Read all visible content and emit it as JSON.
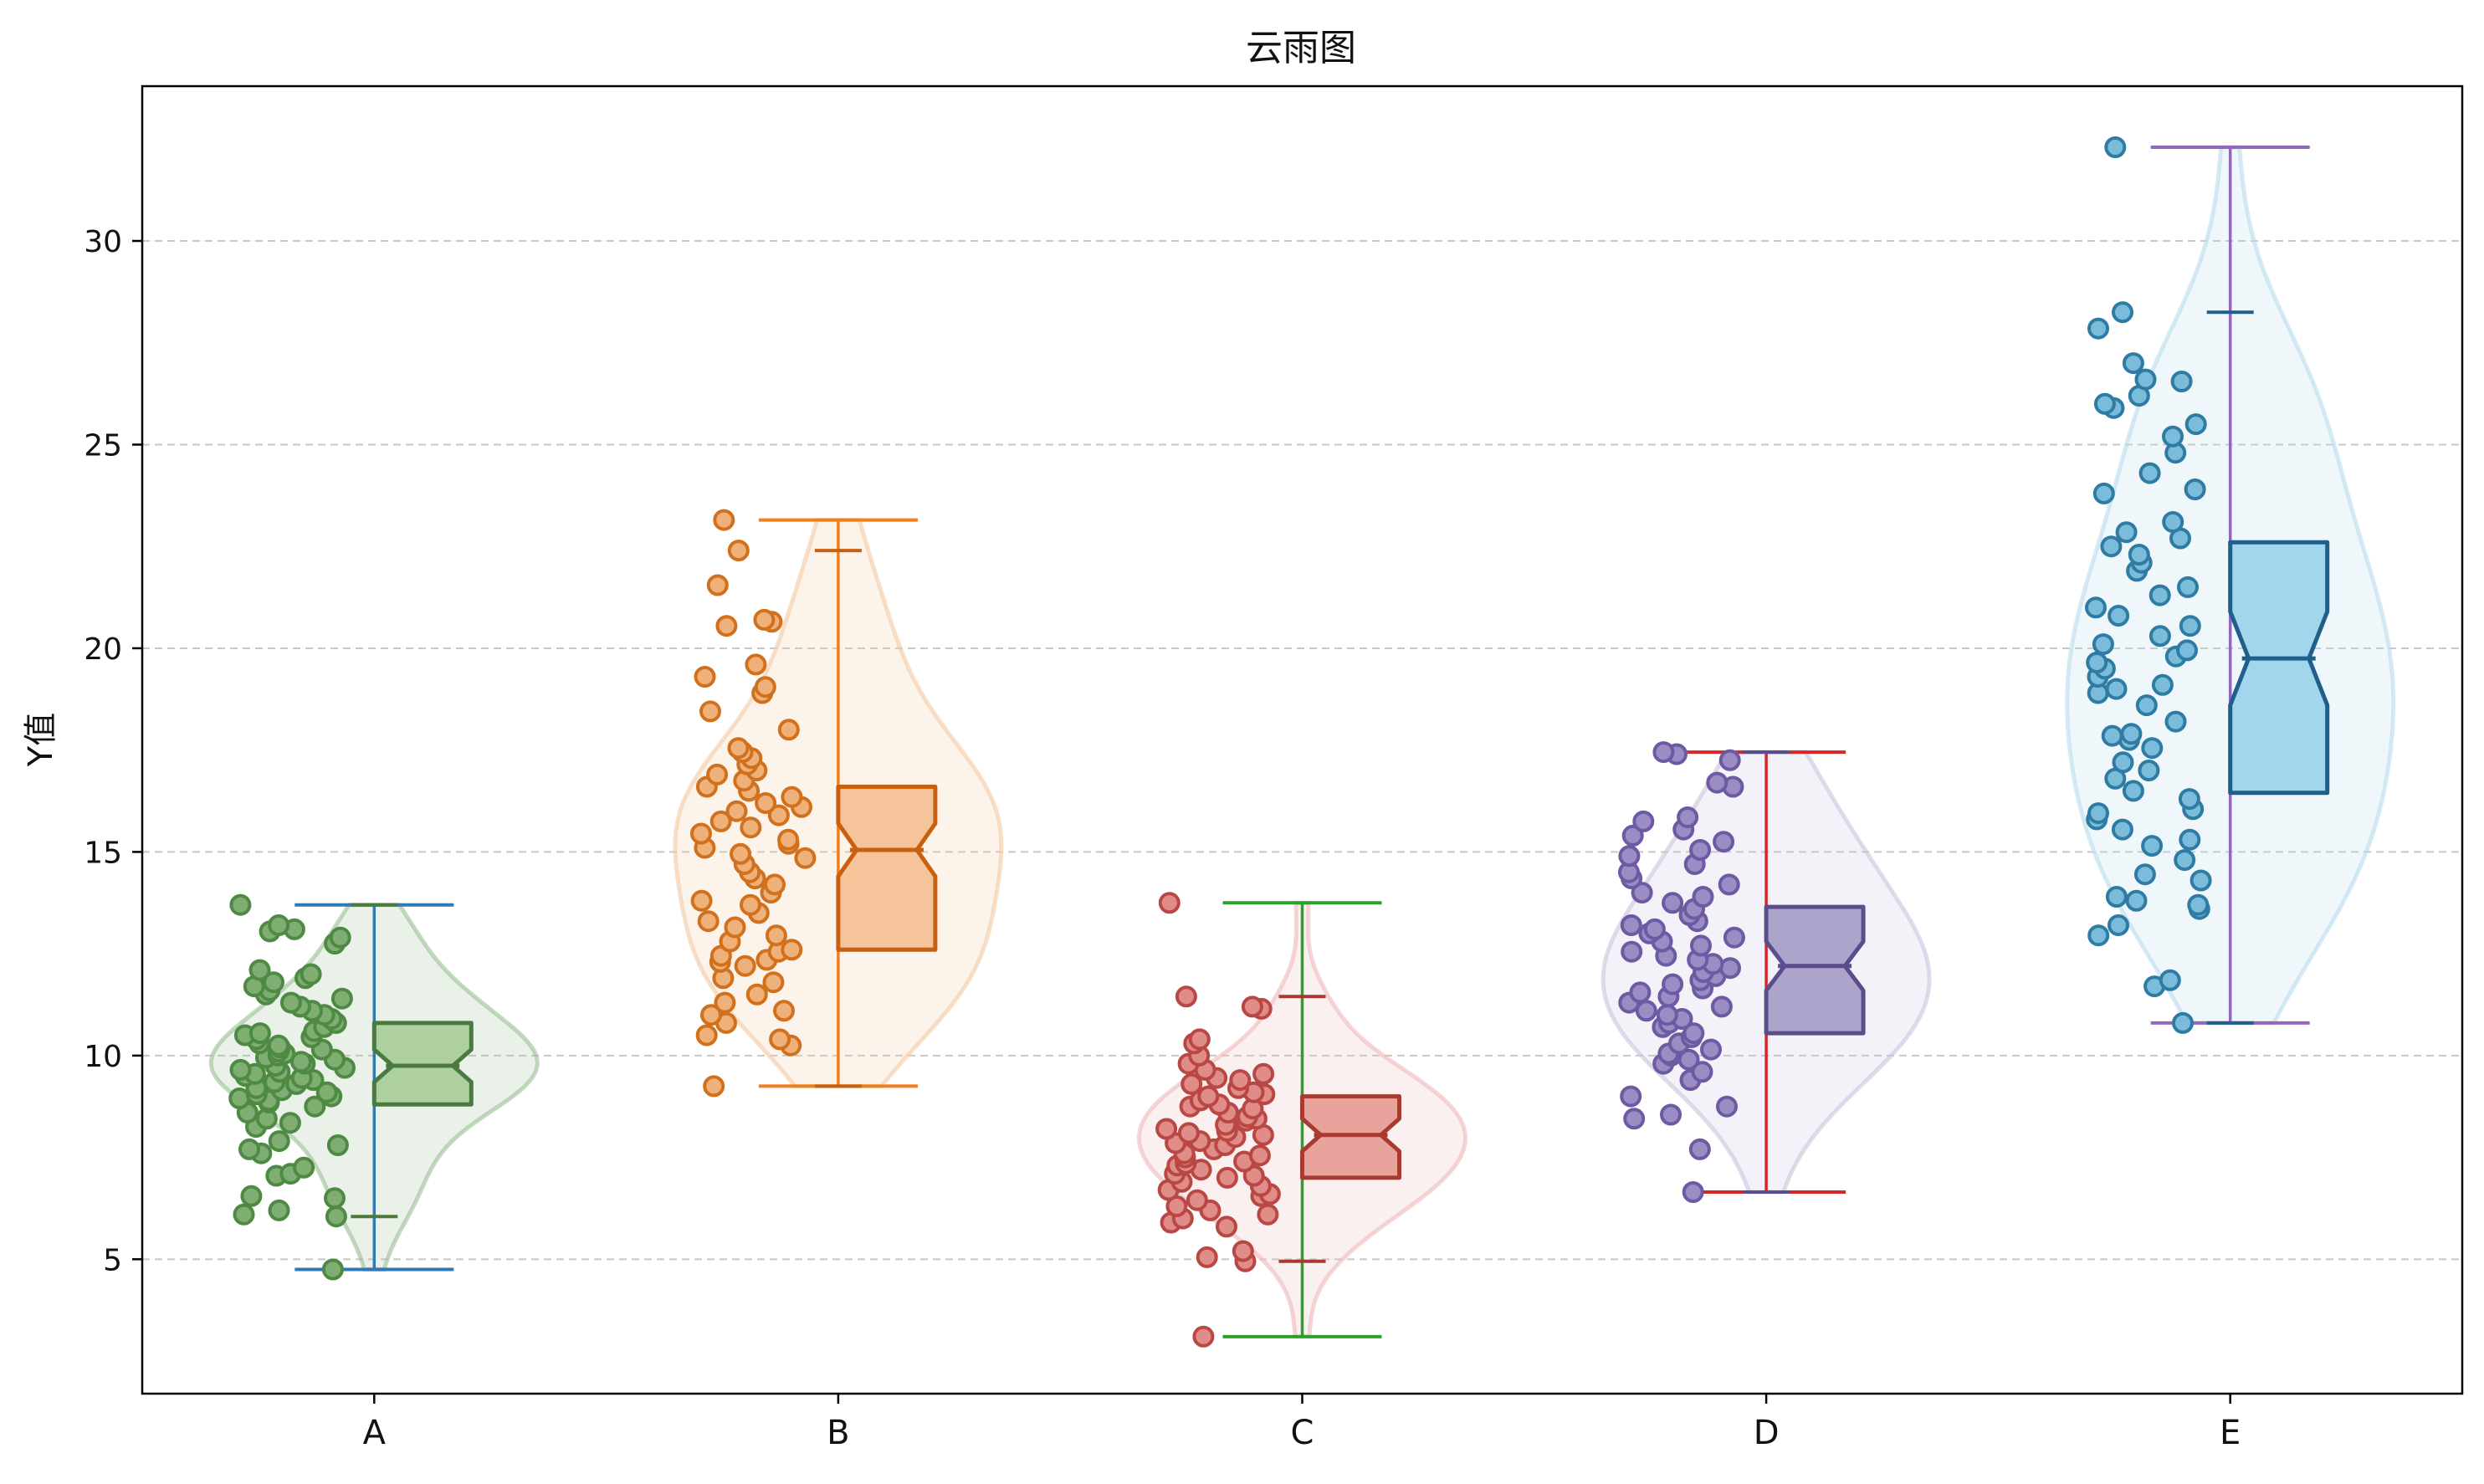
{
  "chart_data": {
    "type": "raincloud",
    "title": "云雨图",
    "xlabel": "",
    "ylabel": "Y值",
    "ylim": [
      1.7,
      33.8
    ],
    "yticks": [
      5,
      10,
      15,
      20,
      25,
      30
    ],
    "grid": {
      "y": true,
      "style": "dashed"
    },
    "categories": [
      "A",
      "B",
      "C",
      "D",
      "E"
    ],
    "series": [
      {
        "category": "A",
        "colors": {
          "violin": "#9bbf94",
          "box_fill": "#aed0a0",
          "box_edge": "#4a7a3e",
          "points": "#7fae73",
          "points_edge": "#4f8a44",
          "minmax_cap": "#2f79b5"
        },
        "min": 4.75,
        "max": 13.7,
        "whisker_low": 6.05,
        "whisker_high": 13.7,
        "q1": 8.8,
        "median": 9.75,
        "q3": 10.8,
        "notch_low": 9.35,
        "notch_high": 10.15,
        "points": [
          4.75,
          6.05,
          6.1,
          6.2,
          6.5,
          6.55,
          7.05,
          7.1,
          7.25,
          7.6,
          7.7,
          7.8,
          7.9,
          8.25,
          8.35,
          8.45,
          8.6,
          8.75,
          8.85,
          8.9,
          8.95,
          9.0,
          9.05,
          9.1,
          9.15,
          9.2,
          9.3,
          9.35,
          9.4,
          9.45,
          9.5,
          9.55,
          9.6,
          9.65,
          9.7,
          9.75,
          9.8,
          9.85,
          9.9,
          9.95,
          10.0,
          10.05,
          10.1,
          10.15,
          10.2,
          10.25,
          10.3,
          10.4,
          10.45,
          10.5,
          10.55,
          10.6,
          10.7,
          10.8,
          10.9,
          11.0,
          11.1,
          11.2,
          11.3,
          11.4,
          11.5,
          11.6,
          11.7,
          11.8,
          11.9,
          12.0,
          12.1,
          12.75,
          12.9,
          13.05,
          13.1,
          13.2,
          13.7
        ]
      },
      {
        "category": "B",
        "colors": {
          "violin": "#f3c9a4",
          "box_fill": "#f5c49b",
          "box_edge": "#c8600f",
          "points": "#efb17a",
          "points_edge": "#d2711d",
          "minmax_cap": "#f07f1b"
        },
        "min": 9.25,
        "max": 23.15,
        "whisker_low": 9.25,
        "whisker_high": 22.4,
        "q1": 12.6,
        "median": 15.05,
        "q3": 16.6,
        "notch_low": 14.4,
        "notch_high": 15.7,
        "points": [
          9.25,
          10.25,
          10.4,
          10.5,
          10.8,
          11.0,
          11.1,
          11.3,
          11.5,
          11.8,
          11.9,
          12.2,
          12.3,
          12.35,
          12.45,
          12.55,
          12.6,
          12.8,
          12.95,
          13.15,
          13.3,
          13.5,
          13.7,
          13.8,
          14.0,
          14.2,
          14.35,
          14.5,
          14.7,
          14.85,
          14.95,
          15.1,
          15.2,
          15.3,
          15.45,
          15.6,
          15.75,
          15.9,
          16.0,
          16.1,
          16.2,
          16.35,
          16.5,
          16.6,
          16.75,
          16.9,
          17.0,
          17.15,
          17.3,
          17.45,
          17.55,
          18.0,
          18.45,
          18.9,
          19.05,
          19.3,
          19.6,
          20.55,
          20.65,
          20.7,
          21.55,
          22.4,
          23.15
        ]
      },
      {
        "category": "C",
        "colors": {
          "violin": "#efb9b9",
          "box_fill": "#e9a39d",
          "box_edge": "#a83a30",
          "points": "#e08c88",
          "points_edge": "#b94844",
          "minmax_cap": "#2ca02c"
        },
        "min": 3.1,
        "max": 13.75,
        "whisker_low": 4.95,
        "whisker_high": 11.45,
        "q1": 7.0,
        "median": 8.05,
        "q3": 9.0,
        "notch_low": 7.65,
        "notch_high": 8.45,
        "points": [
          3.1,
          4.95,
          5.05,
          5.2,
          5.8,
          5.9,
          6.0,
          6.1,
          6.2,
          6.3,
          6.45,
          6.55,
          6.6,
          6.7,
          6.8,
          6.9,
          7.0,
          7.05,
          7.1,
          7.2,
          7.3,
          7.35,
          7.4,
          7.5,
          7.55,
          7.6,
          7.7,
          7.8,
          7.85,
          7.9,
          8.0,
          8.05,
          8.1,
          8.15,
          8.2,
          8.3,
          8.4,
          8.45,
          8.5,
          8.6,
          8.7,
          8.75,
          8.8,
          8.9,
          9.0,
          9.05,
          9.1,
          9.2,
          9.3,
          9.4,
          9.45,
          9.55,
          9.65,
          9.8,
          10.0,
          10.3,
          10.4,
          11.15,
          11.2,
          11.45,
          13.75
        ]
      },
      {
        "category": "D",
        "colors": {
          "violin": "#c9c4dd",
          "box_fill": "#ada4cc",
          "box_edge": "#5b4d8c",
          "points": "#9b8cc4",
          "points_edge": "#6c5aa3",
          "minmax_cap": "#d62728"
        },
        "min": 6.65,
        "max": 17.45,
        "whisker_low": 6.65,
        "whisker_high": 17.45,
        "q1": 10.55,
        "median": 12.2,
        "q3": 13.65,
        "notch_low": 11.6,
        "notch_high": 12.8,
        "points": [
          6.65,
          7.7,
          8.45,
          8.55,
          8.75,
          9.0,
          9.4,
          9.6,
          9.8,
          9.9,
          10.0,
          10.05,
          10.15,
          10.3,
          10.45,
          10.55,
          10.7,
          10.8,
          10.9,
          11.0,
          11.1,
          11.2,
          11.3,
          11.45,
          11.55,
          11.65,
          11.75,
          11.85,
          11.95,
          12.05,
          12.15,
          12.25,
          12.35,
          12.45,
          12.55,
          12.7,
          12.8,
          12.9,
          13.0,
          13.1,
          13.2,
          13.3,
          13.45,
          13.6,
          13.75,
          13.9,
          14.0,
          14.2,
          14.35,
          14.5,
          14.7,
          14.9,
          15.05,
          15.25,
          15.4,
          15.55,
          15.75,
          15.85,
          16.6,
          16.7,
          17.25,
          17.4,
          17.45
        ]
      },
      {
        "category": "E",
        "colors": {
          "violin": "#b9dcec",
          "box_fill": "#a2d6ec",
          "box_edge": "#1f5f8b",
          "points": "#7bbcdb",
          "points_edge": "#2e7ca3",
          "minmax_cap": "#9467bd"
        },
        "min": 10.8,
        "max": 32.3,
        "whisker_low": 10.8,
        "whisker_high": 28.25,
        "q1": 16.45,
        "median": 19.75,
        "q3": 22.6,
        "notch_low": 18.6,
        "notch_high": 20.9,
        "points": [
          10.8,
          11.7,
          11.85,
          12.95,
          13.2,
          13.6,
          13.7,
          13.8,
          13.9,
          14.3,
          14.45,
          14.8,
          15.15,
          15.3,
          15.55,
          15.8,
          15.95,
          16.05,
          16.3,
          16.5,
          16.8,
          17.0,
          17.2,
          17.55,
          17.75,
          17.85,
          17.9,
          18.2,
          18.6,
          18.9,
          19.0,
          19.1,
          19.3,
          19.5,
          19.65,
          19.8,
          19.95,
          20.1,
          20.3,
          20.55,
          20.8,
          21.0,
          21.3,
          21.5,
          21.9,
          22.1,
          22.3,
          22.5,
          22.7,
          22.85,
          23.1,
          23.8,
          23.9,
          24.3,
          24.8,
          25.2,
          25.5,
          25.9,
          26.0,
          26.2,
          26.55,
          26.6,
          27.0,
          27.85,
          28.25,
          32.3
        ]
      }
    ]
  }
}
